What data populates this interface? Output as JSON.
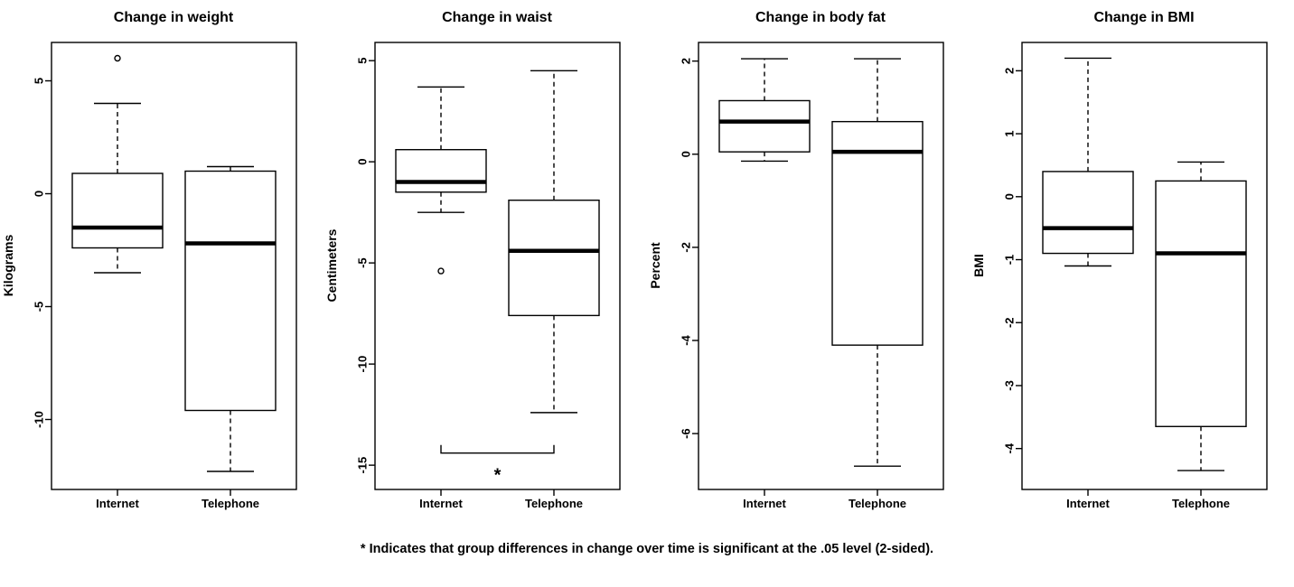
{
  "figure": {
    "footnote": "* Indicates that group differences in change over time is significant at the .05 level (2-sided).",
    "background_color": "#ffffff",
    "foreground_color": "#000000"
  },
  "chart_data": [
    {
      "type": "boxplot",
      "title": "Change in weight",
      "ylabel": "Kilograms",
      "categories": [
        "Internet",
        "Telephone"
      ],
      "yticks": [
        5,
        0,
        -5,
        -10
      ],
      "ylim": [
        -13.1,
        6.7
      ],
      "grid": false,
      "series": [
        {
          "name": "Internet",
          "whisker_low": -3.5,
          "q1": -2.4,
          "median": -1.5,
          "q3": 0.9,
          "whisker_high": 4.0,
          "outliers": [
            6.0
          ]
        },
        {
          "name": "Telephone",
          "whisker_low": -12.3,
          "q1": -9.6,
          "median": -2.2,
          "q3": 1.0,
          "whisker_high": 1.2,
          "outliers": []
        }
      ]
    },
    {
      "type": "boxplot",
      "title": "Change in waist",
      "ylabel": "Centimeters",
      "categories": [
        "Internet",
        "Telephone"
      ],
      "yticks": [
        5,
        0,
        -5,
        -10,
        -15
      ],
      "ylim": [
        -16.2,
        5.9
      ],
      "grid": false,
      "series": [
        {
          "name": "Internet",
          "whisker_low": -2.5,
          "q1": -1.5,
          "median": -1.0,
          "q3": 0.6,
          "whisker_high": 3.7,
          "outliers": [
            -5.4
          ]
        },
        {
          "name": "Telephone",
          "whisker_low": -12.4,
          "q1": -7.6,
          "median": -4.4,
          "q3": -1.9,
          "whisker_high": 4.5,
          "outliers": []
        }
      ],
      "significance": {
        "label": "*",
        "bracket_y": -14.4,
        "bracket_tick_top": -14.0,
        "label_y": -15.2
      }
    },
    {
      "type": "boxplot",
      "title": "Change in body fat",
      "ylabel": "Percent",
      "categories": [
        "Internet",
        "Telephone"
      ],
      "yticks": [
        2,
        0,
        -2,
        -4,
        -6
      ],
      "ylim": [
        -7.2,
        2.4
      ],
      "grid": false,
      "series": [
        {
          "name": "Internet",
          "whisker_low": -0.15,
          "q1": 0.05,
          "median": 0.7,
          "q3": 1.15,
          "whisker_high": 2.05,
          "outliers": []
        },
        {
          "name": "Telephone",
          "whisker_low": -6.7,
          "q1": -4.1,
          "median": 0.05,
          "q3": 0.7,
          "whisker_high": 2.05,
          "outliers": []
        }
      ]
    },
    {
      "type": "boxplot",
      "title": "Change in BMI",
      "ylabel": "BMI",
      "categories": [
        "Internet",
        "Telephone"
      ],
      "yticks": [
        2,
        1,
        0,
        -1,
        -2,
        -3,
        -4
      ],
      "ylim": [
        -4.65,
        2.45
      ],
      "grid": false,
      "series": [
        {
          "name": "Internet",
          "whisker_low": -1.1,
          "q1": -0.9,
          "median": -0.5,
          "q3": 0.4,
          "whisker_high": 2.2,
          "outliers": []
        },
        {
          "name": "Telephone",
          "whisker_low": -4.35,
          "q1": -3.65,
          "median": -0.9,
          "q3": 0.25,
          "whisker_high": 0.55,
          "outliers": []
        }
      ]
    }
  ]
}
